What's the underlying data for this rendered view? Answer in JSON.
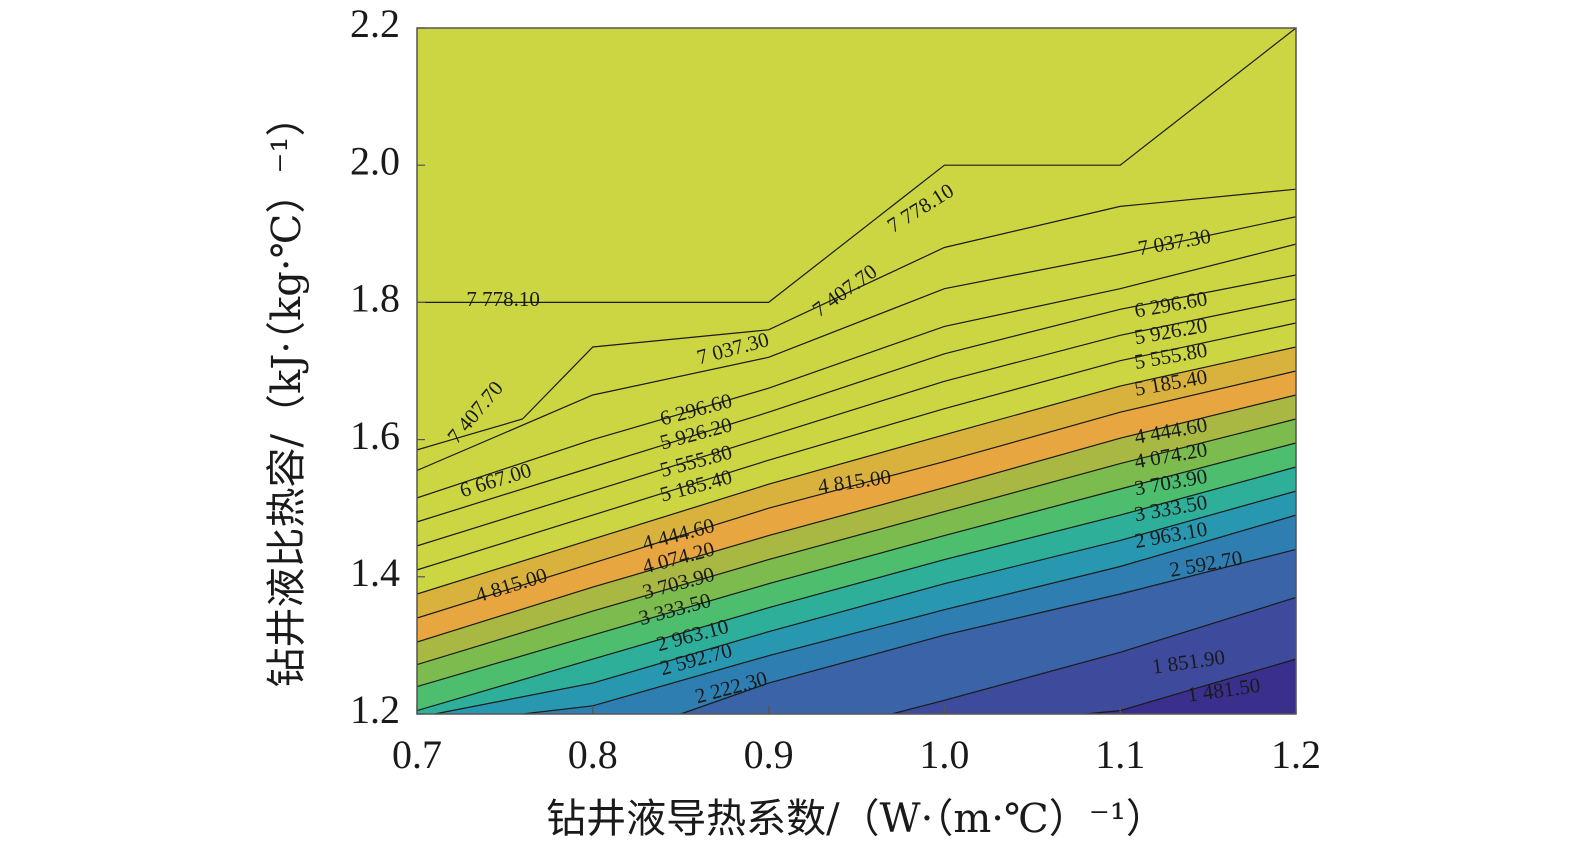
{
  "chart_data": {
    "type": "contour",
    "title": "",
    "xlabel": "钻井液导热系数/（W·（m·℃）⁻¹）",
    "ylabel": "钻井液比热容/（kJ·（kg·℃）⁻¹）",
    "xlim": [
      0.7,
      1.2
    ],
    "ylim": [
      1.2,
      2.2
    ],
    "xticks": [
      "0.7",
      "0.8",
      "0.9",
      "1.0",
      "1.1",
      "1.2"
    ],
    "yticks": [
      "1.2",
      "1.4",
      "1.6",
      "1.8",
      "2.0",
      "2.2"
    ],
    "colormap": "viridis-like (blue → green → orange → yellow-green)",
    "fill_colors": [
      "#3b2f8e",
      "#3e4a9c",
      "#3a63a8",
      "#2f7eb2",
      "#2898b0",
      "#2daf9a",
      "#4dbd6e",
      "#7cbc4e",
      "#a8b842",
      "#e8a640",
      "#d9b23e",
      "#ccd642"
    ],
    "levels": [
      {
        "label": "7 778.10",
        "points": [
          [
            0.7,
            1.8
          ],
          [
            0.9,
            1.8
          ],
          [
            1.0,
            2.0
          ],
          [
            1.1,
            2.0
          ],
          [
            1.2,
            2.2
          ]
        ],
        "label_positions": [
          [
            0.749,
            1.802,
            0
          ],
          [
            0.987,
            1.935,
            -32
          ]
        ]
      },
      {
        "label": "7 407.70",
        "points": [
          [
            0.7,
            1.585
          ],
          [
            0.72,
            1.6
          ],
          [
            0.76,
            1.63
          ],
          [
            0.8,
            1.735
          ],
          [
            0.9,
            1.76
          ],
          [
            1.0,
            1.88
          ],
          [
            1.1,
            1.94
          ],
          [
            1.2,
            1.965
          ]
        ],
        "label_positions": [
          [
            0.734,
            1.638,
            -50
          ],
          [
            0.944,
            1.815,
            -36
          ]
        ]
      },
      {
        "label": "7 037.30",
        "points": [
          [
            0.7,
            1.555
          ],
          [
            0.8,
            1.665
          ],
          [
            0.9,
            1.72
          ],
          [
            1.0,
            1.82
          ],
          [
            1.1,
            1.87
          ],
          [
            1.2,
            1.925
          ]
        ],
        "label_positions": [
          [
            0.88,
            1.73,
            -15
          ],
          [
            1.131,
            1.885,
            -10
          ]
        ]
      },
      {
        "label": "6 667.00",
        "points": [
          [
            0.7,
            1.515
          ],
          [
            0.8,
            1.6
          ],
          [
            0.9,
            1.675
          ],
          [
            1.0,
            1.765
          ],
          [
            1.1,
            1.82
          ],
          [
            1.2,
            1.885
          ]
        ],
        "label_positions": [
          [
            0.745,
            1.538,
            -17
          ]
        ]
      },
      {
        "label": "6 296.60",
        "points": [
          [
            0.7,
            1.48
          ],
          [
            0.8,
            1.56
          ],
          [
            0.9,
            1.64
          ],
          [
            1.0,
            1.725
          ],
          [
            1.1,
            1.79
          ],
          [
            1.2,
            1.84
          ]
        ],
        "label_positions": [
          [
            0.859,
            1.641,
            -15
          ],
          [
            1.129,
            1.794,
            -10
          ]
        ]
      },
      {
        "label": "5 926.20",
        "points": [
          [
            0.7,
            1.445
          ],
          [
            0.8,
            1.525
          ],
          [
            0.9,
            1.605
          ],
          [
            1.0,
            1.685
          ],
          [
            1.1,
            1.752
          ],
          [
            1.2,
            1.805
          ]
        ],
        "label_positions": [
          [
            0.859,
            1.606,
            -15
          ],
          [
            1.129,
            1.755,
            -10
          ]
        ]
      },
      {
        "label": "5 555.80",
        "points": [
          [
            0.7,
            1.41
          ],
          [
            0.8,
            1.49
          ],
          [
            0.9,
            1.57
          ],
          [
            1.0,
            1.645
          ],
          [
            1.1,
            1.715
          ],
          [
            1.2,
            1.77
          ]
        ],
        "label_positions": [
          [
            0.859,
            1.566,
            -15
          ],
          [
            1.129,
            1.719,
            -10
          ]
        ]
      },
      {
        "label": "5 185.40",
        "points": [
          [
            0.7,
            1.375
          ],
          [
            0.8,
            1.455
          ],
          [
            0.9,
            1.535
          ],
          [
            1.0,
            1.607
          ],
          [
            1.1,
            1.678
          ],
          [
            1.2,
            1.735
          ]
        ],
        "label_positions": [
          [
            0.859,
            1.53,
            -15
          ],
          [
            1.129,
            1.68,
            -10
          ]
        ]
      },
      {
        "label": "4 815.00",
        "points": [
          [
            0.7,
            1.34
          ],
          [
            0.8,
            1.42
          ],
          [
            0.9,
            1.5
          ],
          [
            1.0,
            1.568
          ],
          [
            1.1,
            1.64
          ],
          [
            1.2,
            1.7
          ]
        ],
        "label_positions": [
          [
            0.754,
            1.385,
            -17
          ],
          [
            0.949,
            1.536,
            -8
          ]
        ]
      },
      {
        "label": "4 444.60",
        "points": [
          [
            0.7,
            1.305
          ],
          [
            0.8,
            1.385
          ],
          [
            0.9,
            1.46
          ],
          [
            1.0,
            1.53
          ],
          [
            1.1,
            1.602
          ],
          [
            1.2,
            1.665
          ]
        ],
        "label_positions": [
          [
            0.849,
            1.459,
            -15
          ],
          [
            1.129,
            1.61,
            -10
          ]
        ]
      },
      {
        "label": "4 074.20",
        "points": [
          [
            0.7,
            1.272
          ],
          [
            0.8,
            1.35
          ],
          [
            0.9,
            1.425
          ],
          [
            1.0,
            1.495
          ],
          [
            1.1,
            1.565
          ],
          [
            1.2,
            1.63
          ]
        ],
        "label_positions": [
          [
            0.849,
            1.425,
            -15
          ],
          [
            1.129,
            1.574,
            -10
          ]
        ]
      },
      {
        "label": "3 703.90",
        "points": [
          [
            0.7,
            1.24
          ],
          [
            0.8,
            1.315
          ],
          [
            0.9,
            1.39
          ],
          [
            1.0,
            1.46
          ],
          [
            1.1,
            1.528
          ],
          [
            1.2,
            1.595
          ]
        ],
        "label_positions": [
          [
            0.849,
            1.388,
            -15
          ],
          [
            1.129,
            1.535,
            -10
          ]
        ]
      },
      {
        "label": "3 333.50",
        "points": [
          [
            0.7,
            1.205
          ],
          [
            0.8,
            1.28
          ],
          [
            0.9,
            1.355
          ],
          [
            1.0,
            1.425
          ],
          [
            1.1,
            1.49
          ],
          [
            1.2,
            1.56
          ]
        ],
        "label_positions": [
          [
            0.847,
            1.35,
            -15
          ],
          [
            1.129,
            1.497,
            -10
          ]
        ]
      },
      {
        "label": "2 963.10",
        "points": [
          [
            0.71,
            1.2
          ],
          [
            0.8,
            1.245
          ],
          [
            0.9,
            1.32
          ],
          [
            1.0,
            1.39
          ],
          [
            1.1,
            1.453
          ],
          [
            1.2,
            1.525
          ]
        ],
        "label_positions": [
          [
            0.857,
            1.312,
            -15
          ],
          [
            1.129,
            1.458,
            -10
          ]
        ]
      },
      {
        "label": "2 592.70",
        "points": [
          [
            0.76,
            1.2
          ],
          [
            0.8,
            1.212
          ],
          [
            0.9,
            1.285
          ],
          [
            1.0,
            1.352
          ],
          [
            1.1,
            1.415
          ],
          [
            1.2,
            1.49
          ]
        ],
        "label_positions": [
          [
            0.859,
            1.277,
            -15
          ],
          [
            1.149,
            1.416,
            -10
          ]
        ]
      },
      {
        "label": "2 222.30",
        "points": [
          [
            0.85,
            1.2
          ],
          [
            0.9,
            1.245
          ],
          [
            1.0,
            1.315
          ],
          [
            1.1,
            1.375
          ],
          [
            1.2,
            1.44
          ]
        ],
        "label_positions": [
          [
            0.879,
            1.236,
            -15
          ]
        ]
      },
      {
        "label": "1 851.90",
        "points": [
          [
            0.97,
            1.2
          ],
          [
            1.0,
            1.22
          ],
          [
            1.1,
            1.29
          ],
          [
            1.2,
            1.37
          ]
        ],
        "label_positions": [
          [
            1.139,
            1.273,
            -8
          ]
        ]
      },
      {
        "label": "1 481.50",
        "points": [
          [
            1.08,
            1.2
          ],
          [
            1.1,
            1.205
          ],
          [
            1.2,
            1.28
          ]
        ],
        "label_positions": [
          [
            1.159,
            1.232,
            -8
          ]
        ]
      }
    ]
  }
}
